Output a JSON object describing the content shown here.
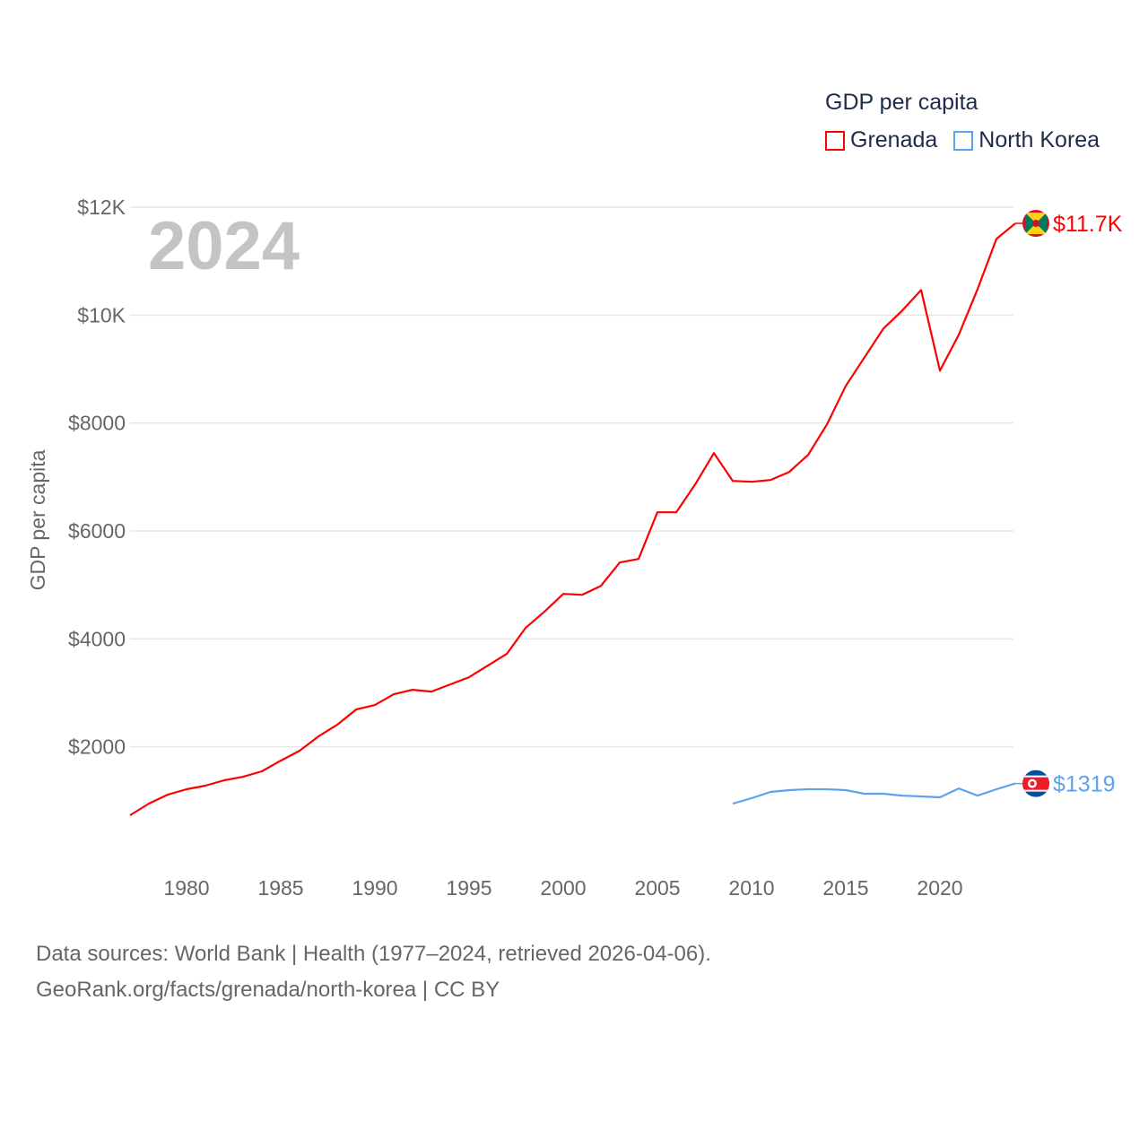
{
  "chart_data": {
    "type": "line",
    "title": "GDP per capita",
    "ylabel": "GDP per capita",
    "xlabel": "",
    "year_watermark": "2024",
    "xlim": [
      1977,
      2024
    ],
    "ylim": [
      0,
      12000
    ],
    "x_ticks": [
      1980,
      1985,
      1990,
      1995,
      2000,
      2005,
      2010,
      2015,
      2020
    ],
    "x_tick_labels": [
      "1980",
      "1985",
      "1990",
      "1995",
      "2000",
      "2005",
      "2010",
      "2015",
      "2020"
    ],
    "y_ticks": [
      2000,
      4000,
      6000,
      8000,
      10000,
      12000
    ],
    "y_tick_labels": [
      "$2000",
      "$4000",
      "$6000",
      "$8000",
      "$10K",
      "$12K"
    ],
    "grid": true,
    "legend_placement": "top-right",
    "series": [
      {
        "name": "Grenada",
        "color": "#ff0000",
        "end_label": "$11.7K",
        "flag_icon": "grenada-flag-icon",
        "x": [
          1977,
          1978,
          1979,
          1980,
          1981,
          1982,
          1983,
          1984,
          1985,
          1986,
          1987,
          1988,
          1989,
          1990,
          1991,
          1992,
          1993,
          1994,
          1995,
          1996,
          1997,
          1998,
          1999,
          2000,
          2001,
          2002,
          2003,
          2004,
          2005,
          2006,
          2007,
          2008,
          2009,
          2010,
          2011,
          2012,
          2013,
          2014,
          2015,
          2016,
          2017,
          2018,
          2019,
          2020,
          2021,
          2022,
          2023,
          2024
        ],
        "values": [
          731,
          947,
          1113,
          1213,
          1279,
          1379,
          1445,
          1545,
          1744,
          1927,
          2193,
          2409,
          2691,
          2774,
          2973,
          3056,
          3023,
          3156,
          3289,
          3505,
          3721,
          4203,
          4502,
          4834,
          4817,
          4983,
          5415,
          5482,
          6346,
          6346,
          6860,
          7442,
          6927,
          6910,
          6944,
          7093,
          7409,
          7973,
          8688,
          9219,
          9751,
          10083,
          10465,
          8970,
          9635,
          10482,
          11412,
          11700
        ]
      },
      {
        "name": "North Korea",
        "color": "#5ba3ee",
        "end_label": "$1319",
        "flag_icon": "north-korea-flag-icon",
        "x": [
          2009,
          2010,
          2011,
          2012,
          2013,
          2014,
          2015,
          2016,
          2017,
          2018,
          2019,
          2020,
          2021,
          2022,
          2023,
          2024
        ],
        "values": [
          947,
          1047,
          1163,
          1196,
          1213,
          1213,
          1196,
          1130,
          1130,
          1096,
          1080,
          1063,
          1229,
          1096,
          1213,
          1319
        ]
      }
    ]
  },
  "footer": {
    "sources": "Data sources: World Bank | Health (1977–2024, retrieved 2026-04-06).",
    "credit": "GeoRank.org/facts/grenada/north-korea | CC BY"
  }
}
